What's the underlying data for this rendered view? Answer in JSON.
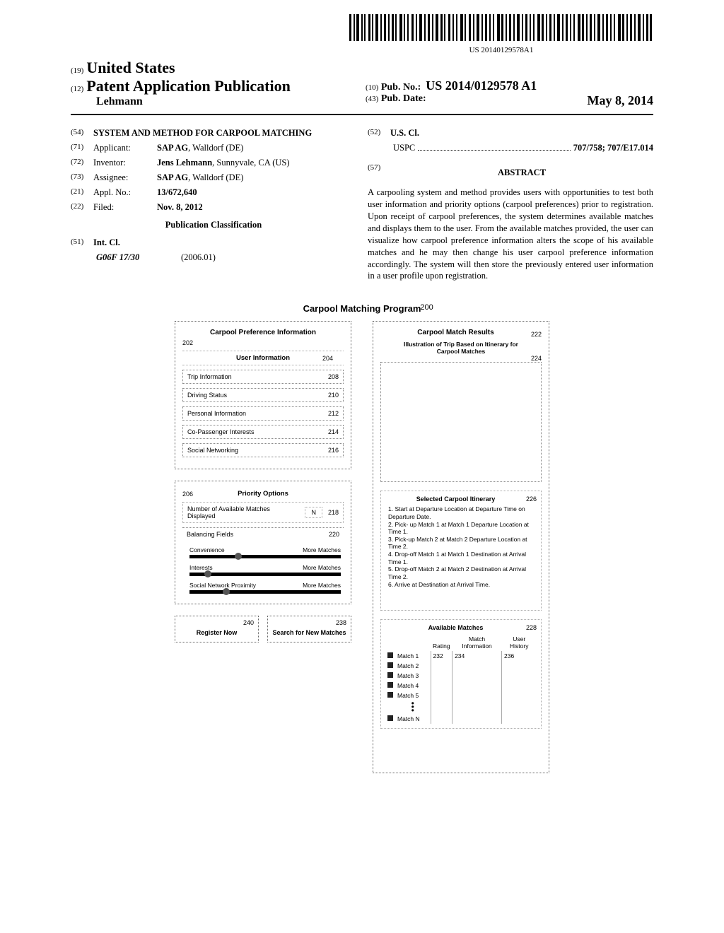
{
  "barcode_label": "US 20140129578A1",
  "header": {
    "line1_prefix": "(19)",
    "line1_title": "United States",
    "line2_prefix": "(12)",
    "line2_title": "Patent Application Publication",
    "author": "Lehmann",
    "pub_no_prefix": "(10)",
    "pub_no_label": "Pub. No.:",
    "pub_no_value": "US 2014/0129578 A1",
    "pub_date_prefix": "(43)",
    "pub_date_label": "Pub. Date:",
    "pub_date_value": "May 8, 2014"
  },
  "biblio": {
    "title_num": "(54)",
    "title": "SYSTEM AND METHOD FOR CARPOOL MATCHING",
    "applicant_num": "(71)",
    "applicant_label": "Applicant:",
    "applicant_value": "SAP AG, Walldorf (DE)",
    "inventor_num": "(72)",
    "inventor_label": "Inventor:",
    "inventor_value": "Jens Lehmann, Sunnyvale, CA (US)",
    "assignee_num": "(73)",
    "assignee_label": "Assignee:",
    "assignee_value": "SAP AG, Walldorf (DE)",
    "appl_num": "(21)",
    "appl_label": "Appl. No.:",
    "appl_value": "13/672,640",
    "filed_num": "(22)",
    "filed_label": "Filed:",
    "filed_value": "Nov. 8, 2012",
    "classification_header": "Publication Classification",
    "intcl_num": "(51)",
    "intcl_label": "Int. Cl.",
    "intcl_value": "G06F 17/30",
    "intcl_year": "(2006.01)",
    "uscl_num": "(52)",
    "uscl_label": "U.S. Cl.",
    "uspc_label": "USPC",
    "uspc_value": "707/758; 707/E17.014",
    "abstract_num": "(57)",
    "abstract_label": "ABSTRACT",
    "abstract_text": "A carpooling system and method provides users with opportunities to test both user information and priority options (carpool preferences) prior to registration. Upon receipt of carpool preferences, the system determines available matches and displays them to the user. From the available matches provided, the user can visualize how carpool preference information alters the scope of his available matches and he may then change his user carpool preference information accordingly. The system will then store the previously entered user information in a user profile upon registration."
  },
  "figure": {
    "title": "Carpool Matching Program",
    "title_ref": "200",
    "left": {
      "panel1_title": "Carpool Preference Information",
      "panel1_ref": "202",
      "user_info_header": "User Information",
      "user_info_ref": "204",
      "rows": [
        {
          "label": "Trip Information",
          "ref": "208"
        },
        {
          "label": "Driving Status",
          "ref": "210"
        },
        {
          "label": "Personal Information",
          "ref": "212"
        },
        {
          "label": "Co-Passenger Interests",
          "ref": "214"
        },
        {
          "label": "Social Networking",
          "ref": "216"
        }
      ],
      "panel2_ref": "206",
      "panel2_title": "Priority Options",
      "num_avail_label": "Number of Available Matches Displayed",
      "num_avail_value": "N",
      "num_avail_ref": "218",
      "balancing_label": "Balancing Fields",
      "balancing_ref": "220",
      "sliders": [
        {
          "left": "Convenience",
          "right": "More Matches",
          "knob_pct": 30
        },
        {
          "left": "Interests",
          "right": "More Matches",
          "knob_pct": 10
        },
        {
          "left": "Social Network Proximity",
          "right": "More Matches",
          "knob_pct": 22
        }
      ],
      "btn_register_ref": "240",
      "btn_register_label": "Register Now",
      "btn_search_ref": "238",
      "btn_search_label": "Search for New Matches"
    },
    "right": {
      "panel_title": "Carpool Match Results",
      "panel_ref": "222",
      "illus_title": "Illustration of Trip Based on Itinerary for Carpool Matches",
      "illus_ref": "224",
      "itin_title": "Selected Carpool Itinerary",
      "itin_ref": "226",
      "itin_steps": "1. Start at Departure Location at Departure Time on Departure Date.\n2. Pick- up Match 1 at Match 1 Departure Location at Time 1.\n3. Pick-up Match 2 at Match 2 Departure Location at Time 2.\n4. Drop-off Match 1 at Match 1 Destination at Arrival Time 1.\n5. Drop-off Match 2 at Match 2 Destination at Arrival Time 2.\n6. Arrive at Destination at Arrival Time.",
      "avail_title": "Available Matches",
      "avail_ref": "228",
      "col_rating": "Rating",
      "col_matchinfo": "Match Information",
      "col_userhist": "User History",
      "ref_rating": "232",
      "ref_matchinfo": "234",
      "ref_userhist": "236",
      "match_rows": [
        "Match 1",
        "Match 2",
        "Match 3",
        "Match 4",
        "Match 5"
      ],
      "match_last": "Match N"
    }
  }
}
